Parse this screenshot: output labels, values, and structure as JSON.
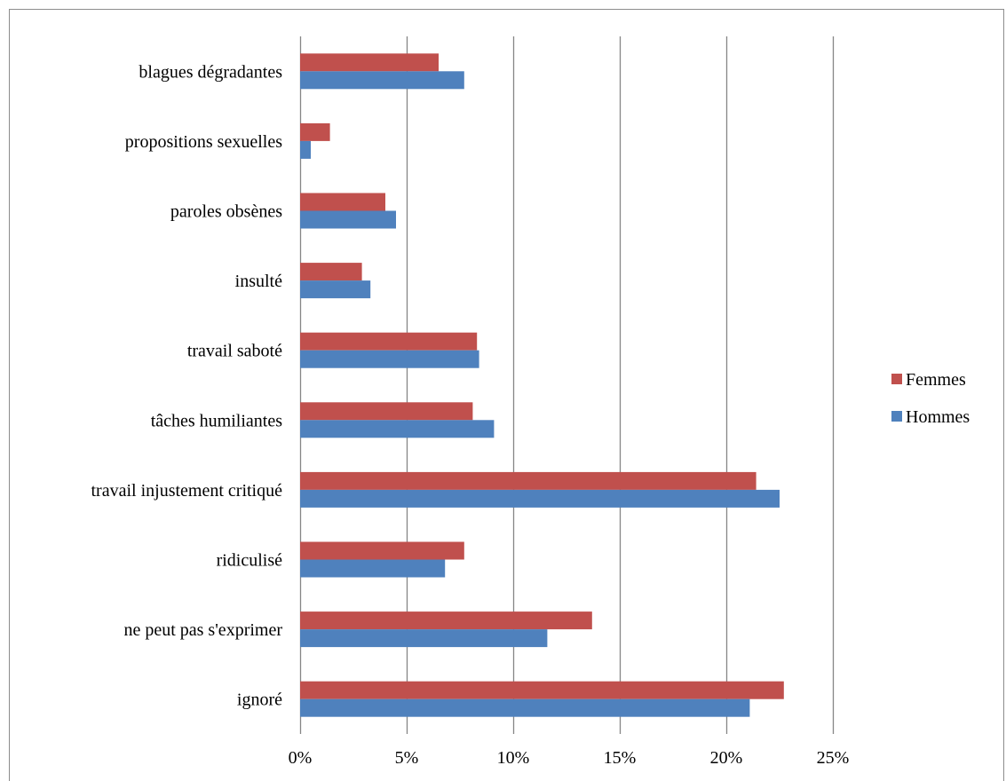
{
  "chart_data": {
    "type": "bar",
    "orientation": "horizontal",
    "title": "",
    "xlabel": "",
    "ylabel": "",
    "categories": [
      "ignoré",
      "ne peut pas s'exprimer",
      "ridiculisé",
      "travail injustement critiqué",
      "tâches humiliantes",
      "travail saboté",
      "insulté",
      "paroles obsènes",
      "propositions sexuelles",
      "blagues dégradantes"
    ],
    "series": [
      {
        "name": "Hommes",
        "color": "#4f81bd",
        "values": [
          21.1,
          11.6,
          6.8,
          22.5,
          9.1,
          8.4,
          3.3,
          4.5,
          0.5,
          7.7
        ]
      },
      {
        "name": "Femmes",
        "color": "#c0504d",
        "values": [
          22.7,
          13.7,
          7.7,
          21.4,
          8.1,
          8.3,
          2.9,
          4.0,
          1.4,
          6.5
        ]
      }
    ],
    "xlim": [
      0,
      25
    ],
    "x_ticks": [
      0,
      5,
      10,
      15,
      20,
      25
    ],
    "x_tick_labels": [
      "0%",
      "5%",
      "10%",
      "15%",
      "20%",
      "25%"
    ],
    "grid": "vertical",
    "grid_color": "#868686",
    "legend": {
      "position": "right",
      "order": [
        "Femmes",
        "Hommes"
      ]
    }
  }
}
